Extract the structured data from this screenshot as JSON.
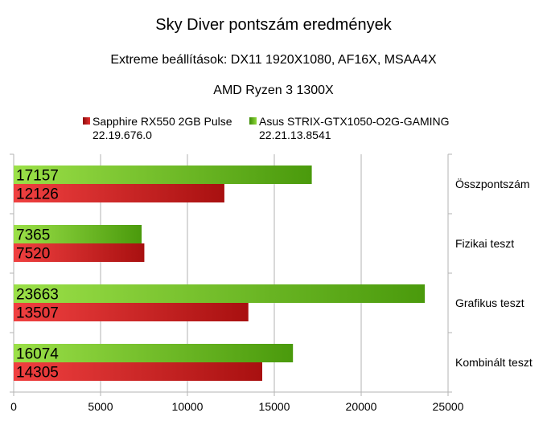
{
  "chart_data": {
    "type": "bar",
    "orientation": "horizontal",
    "title": "Sky Diver pontszám eredmények",
    "subtitle_lines": [
      "Extreme beállítások: DX11 1920X1080, AF16X, MSAA4X",
      "AMD Ryzen 3 1300X"
    ],
    "categories": [
      "Összpontszám",
      "Fizikai teszt",
      "Grafikus teszt",
      "Kombinált teszt"
    ],
    "series": [
      {
        "name": "Sapphire RX550 2GB Pulse\n22.19.676.0",
        "color": "#d42020",
        "values": [
          12126,
          7520,
          13507,
          14305
        ]
      },
      {
        "name": "Asus STRIX-GTX1050-O2G-GAMING\n22.21.13.8541",
        "color": "#66b515",
        "values": [
          17157,
          7365,
          23663,
          16074
        ]
      }
    ],
    "xlim": [
      0,
      25000
    ],
    "xticks": [
      0,
      5000,
      10000,
      15000,
      20000,
      25000
    ],
    "grid": true,
    "legend_position": "top"
  }
}
